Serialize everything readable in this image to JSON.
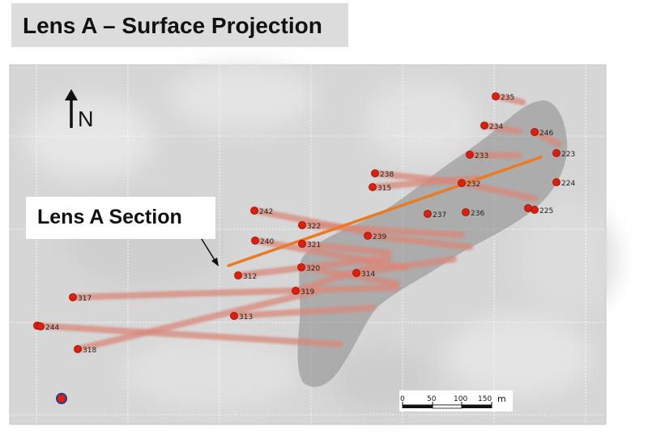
{
  "title": "Lens A – Surface Projection",
  "north_arrow": {
    "label": "N",
    "icon": "north-arrow-icon"
  },
  "section_callout": {
    "label": "Lens A Section"
  },
  "scale_bar": {
    "ticks": [
      "0",
      "50",
      "100",
      "150"
    ],
    "unit": "m"
  },
  "colors": {
    "collar": "#dd1f10",
    "drill_trace": "#d9887a",
    "section_line": "#ea7a24",
    "lens_projection": "#8a8a8a",
    "map_background": "#d6d6d6",
    "title_background": "#dcdcdc",
    "legend_marker_fill": "#dd1f10",
    "legend_marker_ring": "#2a3a8c"
  },
  "drill_holes": [
    {
      "id": "235"
    },
    {
      "id": "234"
    },
    {
      "id": "246"
    },
    {
      "id": "233"
    },
    {
      "id": "223"
    },
    {
      "id": "238"
    },
    {
      "id": "232"
    },
    {
      "id": "224"
    },
    {
      "id": "315"
    },
    {
      "id": "242"
    },
    {
      "id": "237"
    },
    {
      "id": "236"
    },
    {
      "id": "225"
    },
    {
      "id": "322"
    },
    {
      "id": "239"
    },
    {
      "id": "240"
    },
    {
      "id": "321"
    },
    {
      "id": "320"
    },
    {
      "id": "314"
    },
    {
      "id": "312"
    },
    {
      "id": "319"
    },
    {
      "id": "317"
    },
    {
      "id": "313"
    },
    {
      "id": "244"
    },
    {
      "id": "318"
    }
  ]
}
